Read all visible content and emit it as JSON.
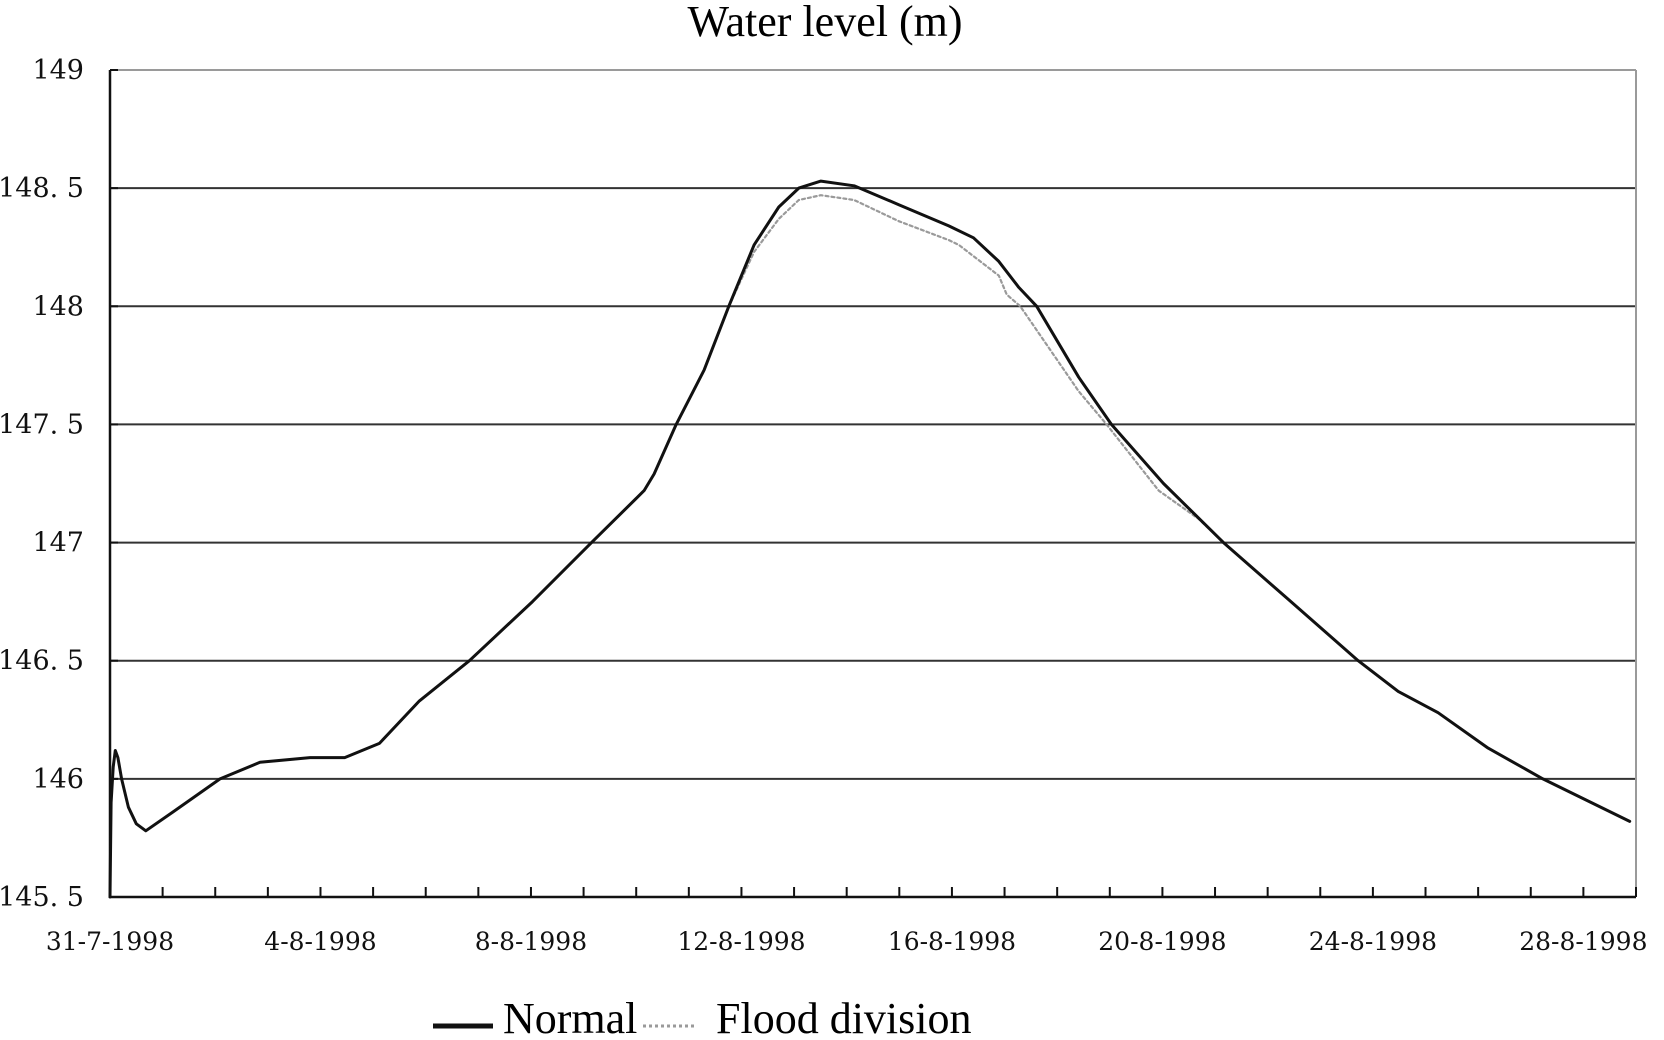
{
  "chart_data": {
    "type": "line",
    "title": "Water level (m)",
    "xlabel": "",
    "ylabel": "",
    "x_unit": "days since 31-7-1998",
    "xlim": [
      0,
      29
    ],
    "ylim": [
      145.5,
      149
    ],
    "grid": true,
    "legend_position": "bottom-center",
    "yticks": [
      145.5,
      146,
      146.5,
      147,
      147.5,
      148,
      148.5,
      149
    ],
    "ytick_labels": [
      "145. 5",
      "146",
      "146. 5",
      "147",
      "147. 5",
      "148",
      "148. 5",
      "149"
    ],
    "xtick_count_days": 29,
    "xtick_labels": [
      {
        "day": 0,
        "label": "31-7-1998"
      },
      {
        "day": 4,
        "label": "4-8-1998"
      },
      {
        "day": 8,
        "label": "8-8-1998"
      },
      {
        "day": 12,
        "label": "12-8-1998"
      },
      {
        "day": 16,
        "label": "16-8-1998"
      },
      {
        "day": 20,
        "label": "20-8-1998"
      },
      {
        "day": 24,
        "label": "24-8-1998"
      },
      {
        "day": 28,
        "label": "28-8-1998"
      }
    ],
    "series": [
      {
        "name": "Normal",
        "style": "solid",
        "color": "#111111",
        "points": [
          [
            0.0,
            145.5
          ],
          [
            0.02,
            145.9
          ],
          [
            0.06,
            146.05
          ],
          [
            0.1,
            146.12
          ],
          [
            0.15,
            146.09
          ],
          [
            0.22,
            146.0
          ],
          [
            0.35,
            145.88
          ],
          [
            0.5,
            145.81
          ],
          [
            0.68,
            145.78
          ],
          [
            1.2,
            145.86
          ],
          [
            2.09,
            146.0
          ],
          [
            2.85,
            146.07
          ],
          [
            3.8,
            146.09
          ],
          [
            4.46,
            146.09
          ],
          [
            5.12,
            146.15
          ],
          [
            5.88,
            146.33
          ],
          [
            6.83,
            146.5
          ],
          [
            8.03,
            146.75
          ],
          [
            9.15,
            147.0
          ],
          [
            10.15,
            147.22
          ],
          [
            10.34,
            147.29
          ],
          [
            10.76,
            147.5
          ],
          [
            11.29,
            147.73
          ],
          [
            11.76,
            148.0
          ],
          [
            12.24,
            148.26
          ],
          [
            12.71,
            148.42
          ],
          [
            13.09,
            148.5
          ],
          [
            13.51,
            148.53
          ],
          [
            14.14,
            148.51
          ],
          [
            14.99,
            148.43
          ],
          [
            15.94,
            148.34
          ],
          [
            16.41,
            148.29
          ],
          [
            16.89,
            148.19
          ],
          [
            17.27,
            148.08
          ],
          [
            17.61,
            148.0
          ],
          [
            18.41,
            147.7
          ],
          [
            19.03,
            147.5
          ],
          [
            20.02,
            147.25
          ],
          [
            21.16,
            147.0
          ],
          [
            22.39,
            146.76
          ],
          [
            23.72,
            146.5
          ],
          [
            24.48,
            146.37
          ],
          [
            25.24,
            146.28
          ],
          [
            26.19,
            146.13
          ],
          [
            27.23,
            146.0
          ],
          [
            28.88,
            145.82
          ]
        ]
      },
      {
        "name": "Flood division",
        "style": "dotted",
        "color": "#9a9a9a",
        "points": [
          [
            11.76,
            148.0
          ],
          [
            12.24,
            148.23
          ],
          [
            12.71,
            148.37
          ],
          [
            13.09,
            148.45
          ],
          [
            13.51,
            148.47
          ],
          [
            14.14,
            148.45
          ],
          [
            14.99,
            148.36
          ],
          [
            15.94,
            148.28
          ],
          [
            16.13,
            148.26
          ],
          [
            16.89,
            148.13
          ],
          [
            17.04,
            148.05
          ],
          [
            17.3,
            148.0
          ],
          [
            18.41,
            147.64
          ],
          [
            18.94,
            147.5
          ],
          [
            19.93,
            147.22
          ],
          [
            20.69,
            147.1
          ],
          [
            21.16,
            147.0
          ]
        ]
      }
    ]
  },
  "legend": {
    "items": [
      {
        "label": "Normal",
        "style": "solid"
      },
      {
        "label": "Flood division",
        "style": "dotted"
      }
    ]
  },
  "colors": {
    "grid": "#333333",
    "frame": "#9a9a9a",
    "axis": "#111111"
  }
}
